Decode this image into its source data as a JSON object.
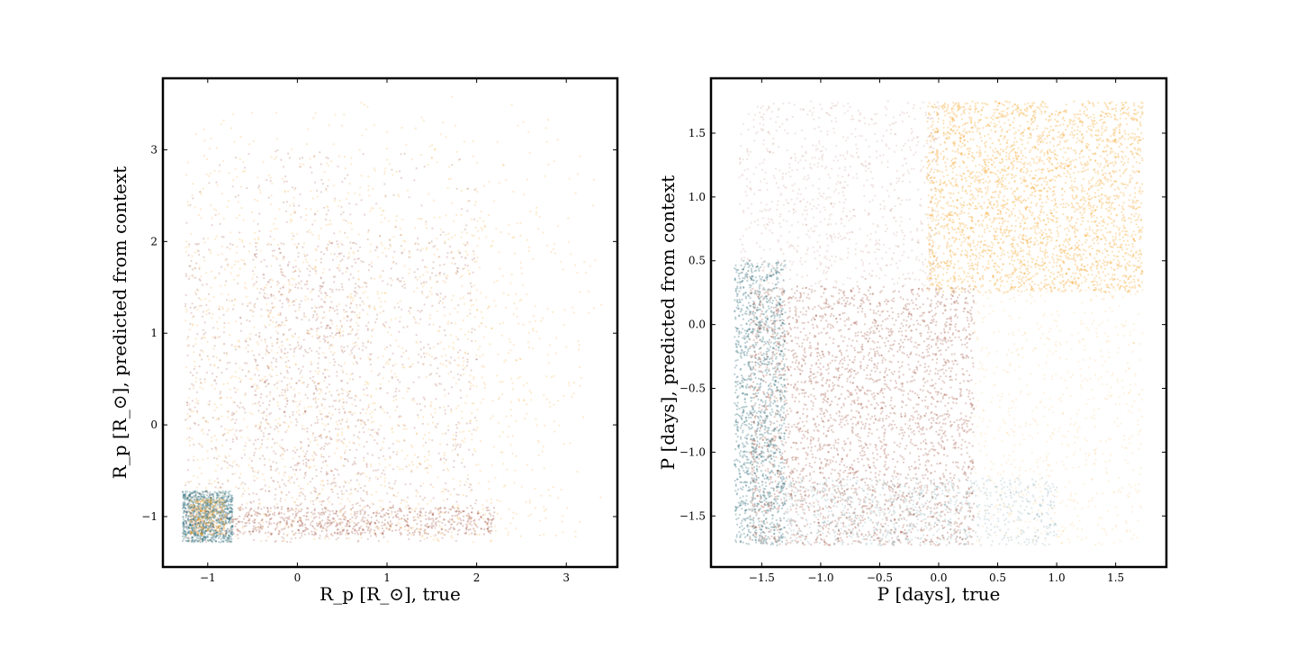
{
  "colors": {
    "teal": "#2f6e7a",
    "brown": "#8b2a12",
    "orange": "#f5a01a",
    "frame": "#000000"
  },
  "chart_data": [
    {
      "type": "scatter",
      "title": "",
      "xlabel": "R_p [R_⊙], true",
      "ylabel": "R_p [R_⊙], predicted from context",
      "xlim": [
        -1.5,
        3.57
      ],
      "ylim": [
        -1.55,
        3.78
      ],
      "xticks": [
        -1,
        0,
        1,
        2,
        3
      ],
      "xtick_labels": [
        "−1",
        "0",
        "1",
        "2",
        "3"
      ],
      "yticks": [
        -1,
        0,
        1,
        2,
        3
      ],
      "ytick_labels": [
        "−1",
        "0",
        "1",
        "2",
        "3"
      ],
      "grid": false,
      "legend": "none",
      "point_groups": [
        {
          "color": "orange",
          "x_range": [
            -1.25,
            3.4
          ],
          "y_range": [
            -1.28,
            3.6
          ],
          "density": "high at x 0.5 to 2.0, fading beyond x 2.2"
        },
        {
          "color": "brown",
          "x_range": [
            -1.25,
            2.0
          ],
          "y_range": [
            -1.28,
            3.0
          ],
          "density": "highest at x -0.3 to 0.6, y -1.2 to 2.0"
        },
        {
          "color": "teal",
          "x_range": [
            -1.28,
            -0.72
          ],
          "y_range": [
            -1.28,
            -0.72
          ],
          "density": "dense cluster near (-1, -1)"
        }
      ]
    },
    {
      "type": "scatter",
      "title": "",
      "xlabel": "P [days], true",
      "ylabel": "P [days], predicted from context",
      "xlim": [
        -1.93,
        1.93
      ],
      "ylim": [
        -1.9,
        1.93
      ],
      "xticks": [
        -1.5,
        -1.0,
        -0.5,
        0.0,
        0.5,
        1.0,
        1.5
      ],
      "xtick_labels": [
        "−1.5",
        "−1.0",
        "−0.5",
        "0.0",
        "0.5",
        "1.0",
        "1.5"
      ],
      "yticks": [
        -1.5,
        -1.0,
        -0.5,
        0.0,
        0.5,
        1.0,
        1.5
      ],
      "ytick_labels": [
        "−1.5",
        "−1.0",
        "−0.5",
        "0.0",
        "0.5",
        "1.0",
        "1.5"
      ],
      "grid": false,
      "legend": "none",
      "point_groups": [
        {
          "color": "orange",
          "x_range": [
            -0.1,
            1.73
          ],
          "y_range": [
            0.3,
            1.75
          ],
          "density": "high"
        },
        {
          "color": "brown",
          "x_range": [
            -1.6,
            0.3
          ],
          "y_range": [
            -1.73,
            0.3
          ],
          "density": "high"
        },
        {
          "color": "teal",
          "x_range": [
            -1.73,
            -1.3
          ],
          "y_range": [
            -1.73,
            0.5
          ],
          "density": "high near left edge"
        }
      ]
    }
  ]
}
